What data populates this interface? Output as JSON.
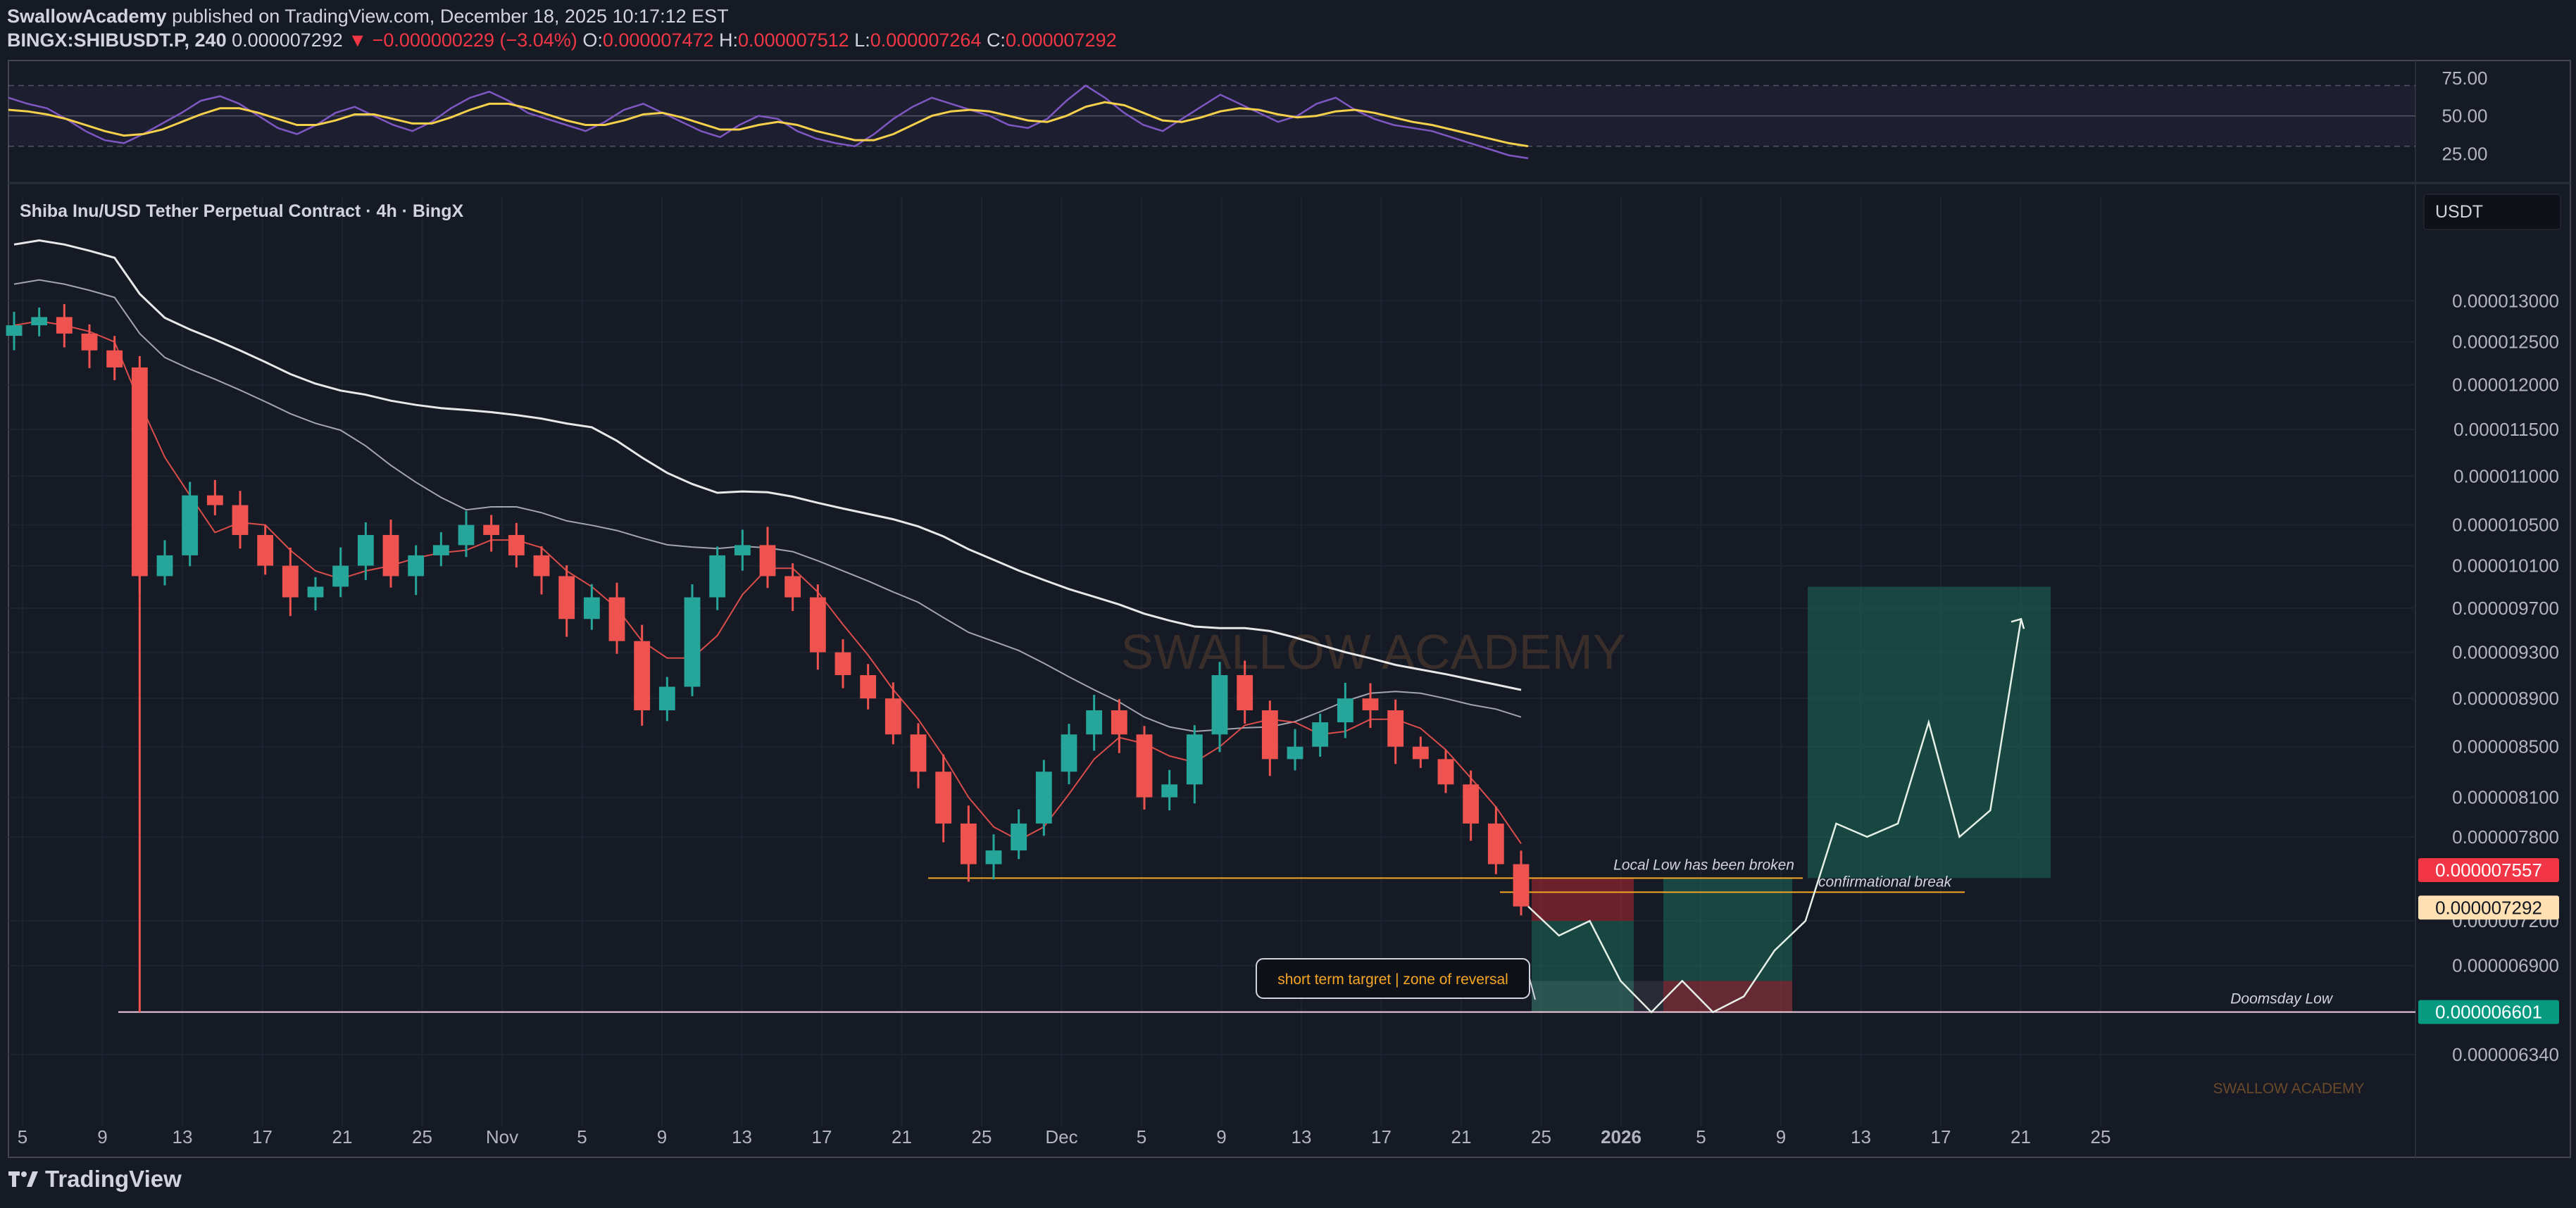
{
  "header": {
    "publisher": "SwallowAcademy",
    "published_text": "published on TradingView.com, December 18, 2025 10:17:12 EST",
    "symbol_interval": "BINGX:SHIBUSDT.P, 240",
    "last": "0.000007292",
    "change": "−0.000000229 (−3.04%)",
    "o_label": "O:",
    "o": "0.000007472",
    "h_label": "H:",
    "h": "0.000007512",
    "l_label": "L:",
    "l": "0.000007264",
    "c_label": "C:",
    "c": "0.000007292"
  },
  "footer": {
    "brand": "TradingView"
  },
  "colors": {
    "background": "#161A25",
    "up": "#26A69A",
    "down": "#EF5350",
    "rsi": "#7E57C2",
    "rsi_ma": "#F5D04B",
    "level_orange": "#F5A623",
    "price_red": "#F23645",
    "price_cream": "#FFE0B2",
    "target_green": "#1B6B5A"
  },
  "chart_data": [
    {
      "type": "line",
      "title": "RSI",
      "y_ticks": [
        "75.00",
        "50.00",
        "25.00"
      ],
      "ylim": [
        15,
        80
      ],
      "bands": [
        70,
        50,
        30
      ],
      "series": [
        {
          "values": [
            62,
            58,
            55,
            48,
            40,
            34,
            32,
            38,
            45,
            52,
            60,
            63,
            58,
            50,
            42,
            38,
            44,
            52,
            56,
            50,
            44,
            40,
            46,
            55,
            62,
            66,
            60,
            52,
            48,
            44,
            40,
            46,
            54,
            58,
            52,
            46,
            40,
            36,
            44,
            50,
            48,
            40,
            35,
            32,
            30,
            38,
            48,
            56,
            62,
            58,
            54,
            50,
            44,
            42,
            48,
            60,
            70,
            62,
            52,
            44,
            40,
            48,
            56,
            64,
            58,
            52,
            46,
            50,
            58,
            62,
            54,
            48,
            44,
            42,
            40,
            36,
            32,
            28,
            24,
            22
          ]
        },
        {
          "values": [
            54,
            53,
            51,
            48,
            44,
            40,
            37,
            38,
            41,
            46,
            51,
            55,
            55,
            52,
            48,
            44,
            44,
            47,
            51,
            51,
            48,
            45,
            45,
            49,
            54,
            58,
            58,
            55,
            51,
            47,
            44,
            44,
            47,
            51,
            52,
            49,
            45,
            41,
            41,
            44,
            46,
            44,
            40,
            37,
            34,
            34,
            38,
            44,
            50,
            53,
            54,
            53,
            50,
            47,
            46,
            50,
            56,
            59,
            57,
            52,
            47,
            46,
            49,
            53,
            55,
            54,
            51,
            49,
            50,
            53,
            54,
            52,
            49,
            46,
            44,
            41,
            38,
            35,
            32,
            30
          ]
        }
      ]
    },
    {
      "type": "candlestick",
      "title": "Shiba Inu/USD Tether Perpetual Contract · 4h · BingX",
      "currency_label": "USDT",
      "watermark": "SWALLOW ACADEMY",
      "watermark_small": "SWALLOW ACADEMY",
      "ylim": [
        6e-06,
        1.36e-05
      ],
      "y_ticks": [
        "0.000013000",
        "0.000012500",
        "0.000012000",
        "0.000011500",
        "0.000011000",
        "0.000010500",
        "0.000010100",
        "0.000009700",
        "0.000009300",
        "0.000008900",
        "0.000008500",
        "0.000008100",
        "0.000007800",
        "0.000007200",
        "0.000006900",
        "0.000006340"
      ],
      "x_ticks": [
        "5",
        "9",
        "13",
        "17",
        "21",
        "25",
        "Nov",
        "5",
        "9",
        "13",
        "17",
        "21",
        "25",
        "Dec",
        "5",
        "9",
        "13",
        "17",
        "21",
        "25",
        "2026",
        "5",
        "9",
        "13",
        "17",
        "21",
        "25"
      ],
      "closes": [
        1.27e-05,
        1.28e-05,
        1.26e-05,
        1.24e-05,
        1.22e-05,
        1e-05,
        1.02e-05,
        1.08e-05,
        1.07e-05,
        1.04e-05,
        1.01e-05,
        9.8e-06,
        9.9e-06,
        1.01e-05,
        1.04e-05,
        1e-05,
        1.02e-05,
        1.03e-05,
        1.05e-05,
        1.04e-05,
        1.02e-05,
        1e-05,
        9.6e-06,
        9.8e-06,
        9.4e-06,
        8.8e-06,
        9e-06,
        9.8e-06,
        1.02e-05,
        1.03e-05,
        1e-05,
        9.8e-06,
        9.3e-06,
        9.1e-06,
        8.9e-06,
        8.6e-06,
        8.3e-06,
        7.9e-06,
        7.6e-06,
        7.7e-06,
        7.9e-06,
        8.3e-06,
        8.6e-06,
        8.8e-06,
        8.6e-06,
        8.1e-06,
        8.2e-06,
        8.6e-06,
        9.1e-06,
        8.8e-06,
        8.4e-06,
        8.5e-06,
        8.7e-06,
        8.9e-06,
        8.8e-06,
        8.5e-06,
        8.4e-06,
        8.2e-06,
        7.9e-06,
        7.6e-06,
        7.3e-06
      ],
      "levels": [
        {
          "label": "Local Low has been broken",
          "price": 7.5e-06
        },
        {
          "label": "confirmational break",
          "price": 7.4e-06
        },
        {
          "label": "Doomsday Low",
          "price": 6.601e-06
        }
      ],
      "wick_low": 6.601e-06,
      "callout": "short term targret | zone of reversal",
      "price_labels": [
        {
          "value": "0.000007557",
          "color": "#F23645"
        },
        {
          "value": "0.000007292",
          "color": "#FFE0B2"
        },
        {
          "value": "0.000006601",
          "color": "#089981"
        }
      ],
      "projection": [
        7.3e-06,
        7.1e-06,
        7.2e-06,
        6.8e-06,
        6.6e-06,
        6.8e-06,
        6.6e-06,
        6.7e-06,
        7e-06,
        7.2e-06,
        7.9e-06,
        7.8e-06,
        7.9e-06,
        8.7e-06,
        7.8e-06,
        8e-06,
        9.6e-06
      ]
    }
  ]
}
